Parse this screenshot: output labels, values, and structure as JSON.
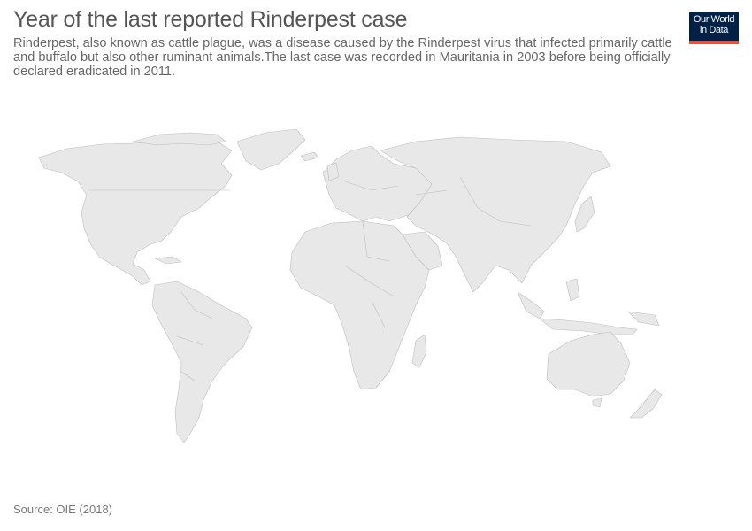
{
  "header": {
    "title": "Year of the last reported Rinderpest case",
    "subtitle": "Rinderpest, also known as cattle plague, was a disease caused by the Rinderpest virus that infected primarily cattle and buffalo but also other ruminant animals.The last case was recorded in Mauritania in 2003 before being officially declared eradicated in 2011."
  },
  "logo": {
    "line1": "Our World",
    "line2": "in Data"
  },
  "map": {
    "fill_color": "#e8e8e8",
    "border_color": "#bdbdbd"
  },
  "footer": {
    "source": "Source: OIE (2018)"
  }
}
